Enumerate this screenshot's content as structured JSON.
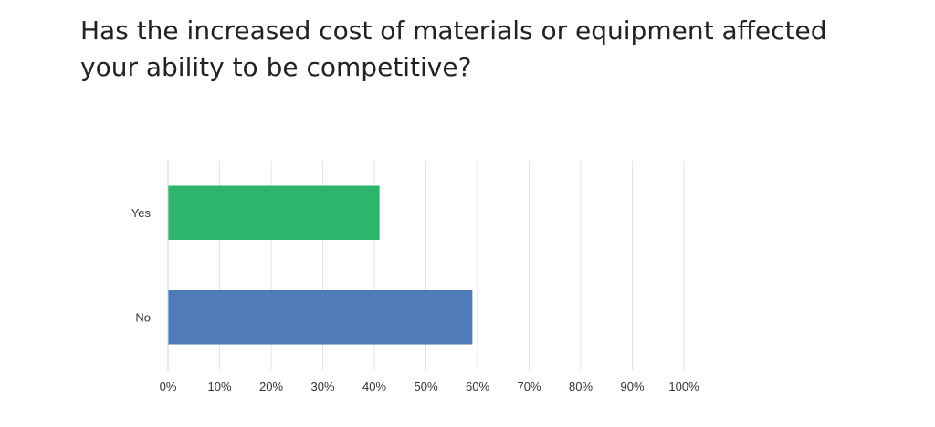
{
  "title": "Has the increased cost of materials or equipment affected your ability to be competitive?",
  "chart_data": {
    "type": "bar",
    "orientation": "horizontal",
    "title": "Has the increased cost of materials or equipment affected your ability to be competitive?",
    "categories": [
      "Yes",
      "No"
    ],
    "values": [
      41,
      59
    ],
    "colors": [
      "#2db56b",
      "#4f7bb9"
    ],
    "x_unit": "%",
    "xlim": [
      0,
      100
    ],
    "x_ticks": [
      0,
      10,
      20,
      30,
      40,
      50,
      60,
      70,
      80,
      90,
      100
    ],
    "x_tick_labels": [
      "0%",
      "10%",
      "20%",
      "30%",
      "40%",
      "50%",
      "60%",
      "70%",
      "80%",
      "90%",
      "100%"
    ],
    "grid": "vertical",
    "legend": "none"
  }
}
